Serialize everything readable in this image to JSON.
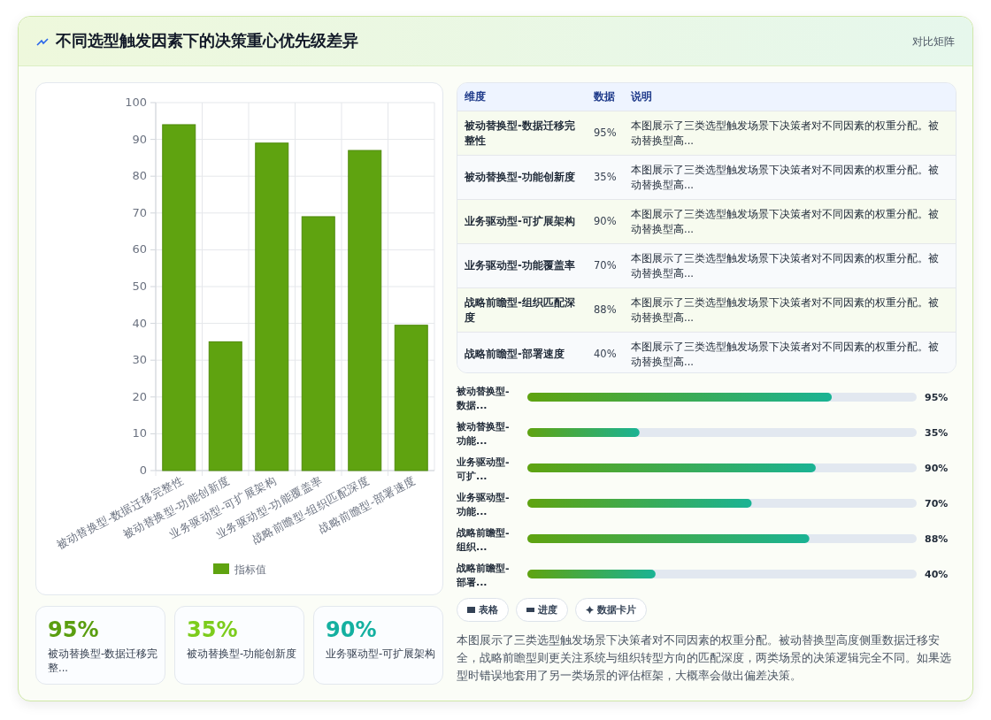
{
  "chart_data": [
    {
      "type": "other",
      "title": "不同选型触发因素下的决策重心优先级差异",
      "annotations": [
        "对比矩阵"
      ]
    },
    {
      "type": "bar",
      "categories": [
        "被动替换型-数据迁移完整性",
        "被动替换型-功能创新度",
        "业务驱动型-可扩展架构",
        "业务驱动型-功能覆盖率",
        "战略前瞻型-组织匹配深度",
        "战略前瞻型-部署速度"
      ],
      "series": [
        {
          "name": "指标值",
          "color": "#5fa310",
          "values": [
            94,
            35,
            89,
            69,
            87,
            39.5
          ]
        }
      ],
      "ylim": [
        0,
        100
      ],
      "yticks": [
        0,
        10,
        20,
        30,
        40,
        50,
        60,
        70,
        80,
        90,
        100
      ],
      "grid": true,
      "legend": "bottom"
    },
    {
      "type": "other",
      "categories": [
        "被动替换型-数据迁移完整性",
        "被动替换型-功能创新度",
        "业务驱动型-可扩展架构",
        "业务驱动型-功能覆盖率",
        "战略前瞻型-组织匹配深度",
        "战略前瞻型-部署速度"
      ],
      "values": [
        95,
        35,
        90,
        70,
        88,
        40
      ],
      "value_labels": [
        "95%",
        "35%",
        "90%",
        "70%",
        "88%",
        "40%"
      ],
      "annotations": [
        "维度",
        "数据",
        "说明",
        "本图展示了三类选型触发场景下决策者对不同因素的权重分配。被动替换型高...",
        "本图展示了三类选型触发场景下决策者对不同因素的权重分配。被动替换型高...",
        "本图展示了三类选型触发场景下决策者对不同因素的权重分配。被动替换型高...",
        "本图展示了三类选型触发场景下决策者对不同因素的权重分配。被动替换型高...",
        "本图展示了三类选型触发场景下决策者对不同因素的权重分配。被动替换型高...",
        "本图展示了三类选型触发场景下决策者对不同因素的权重分配。被动替换型高..."
      ]
    },
    {
      "type": "bar",
      "orientation": "horizontal",
      "categories": [
        "被动替换型-数据...",
        "被动替换型-功能...",
        "业务驱动型-可扩...",
        "业务驱动型-功能...",
        "战略前瞻型-组织...",
        "战略前瞻型-部署..."
      ],
      "color": "#5fa310",
      "values": [
        95,
        35,
        90,
        70,
        88,
        40
      ],
      "value_labels": [
        "95%",
        "35%",
        "90%",
        "70%",
        "88%",
        "40%"
      ],
      "xlim": [
        0,
        121.5
      ]
    },
    {
      "type": "other",
      "categories": [
        "被动替换型-数据迁移完整...",
        "被动替换型-功能创新度",
        "业务驱动型-可扩展架构"
      ],
      "values": [
        95,
        35,
        90
      ],
      "value_labels": [
        "95%",
        "35%",
        "90%"
      ]
    },
    {
      "type": "other",
      "categories": [
        "表格",
        "进度",
        "数据卡片"
      ],
      "annotations": [
        "本图展示了三类选型触发场景下决策者对不同因素的权重分配。被动替换型高度侧重数据迁移安全，战略前瞻型则更关注系统与组织转型方向的匹配深度，两类场景的决策逻辑完全不同。如果选型时错误地套用了另一类场景的评估框架，大概率会做出偏差决策。"
      ]
    }
  ]
}
